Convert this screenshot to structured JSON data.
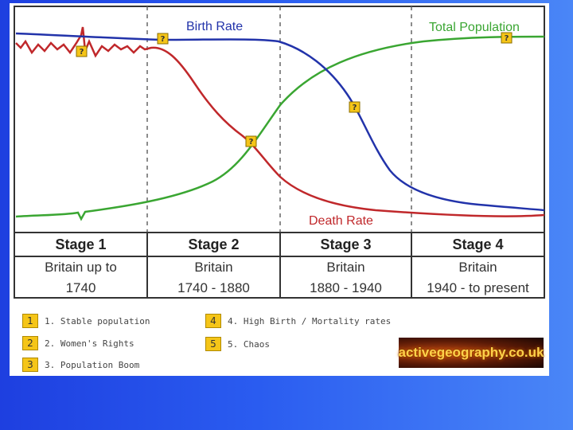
{
  "chart": {
    "series_labels": {
      "birth_rate": "Birth Rate",
      "death_rate": "Death Rate",
      "total_population": "Total Population"
    },
    "marker_text": "?",
    "stages": [
      {
        "label": "Stage 1",
        "line1": "Britain up to",
        "line2": "1740"
      },
      {
        "label": "Stage 2",
        "line1": "Britain",
        "line2": "1740 - 1880"
      },
      {
        "label": "Stage 3",
        "line1": "Britain",
        "line2": "1880 - 1940"
      },
      {
        "label": "Stage 4",
        "line1": "Britain",
        "line2": "1940 - to present"
      }
    ]
  },
  "legend": [
    {
      "number": "1",
      "text": "1. Stable population"
    },
    {
      "number": "2",
      "text": "2. Women's Rights"
    },
    {
      "number": "3",
      "text": "3. Population Boom"
    },
    {
      "number": "4",
      "text": "4. High Birth / Mortality rates"
    },
    {
      "number": "5",
      "text": "5. Chaos"
    }
  ],
  "logo": {
    "text": "activegeography.co.uk"
  },
  "colors": {
    "birth_rate": "#2233aa",
    "death_rate": "#c0282b",
    "total_population": "#3aa632",
    "marker": "#f5c518",
    "background": "#2a5cf0"
  }
}
